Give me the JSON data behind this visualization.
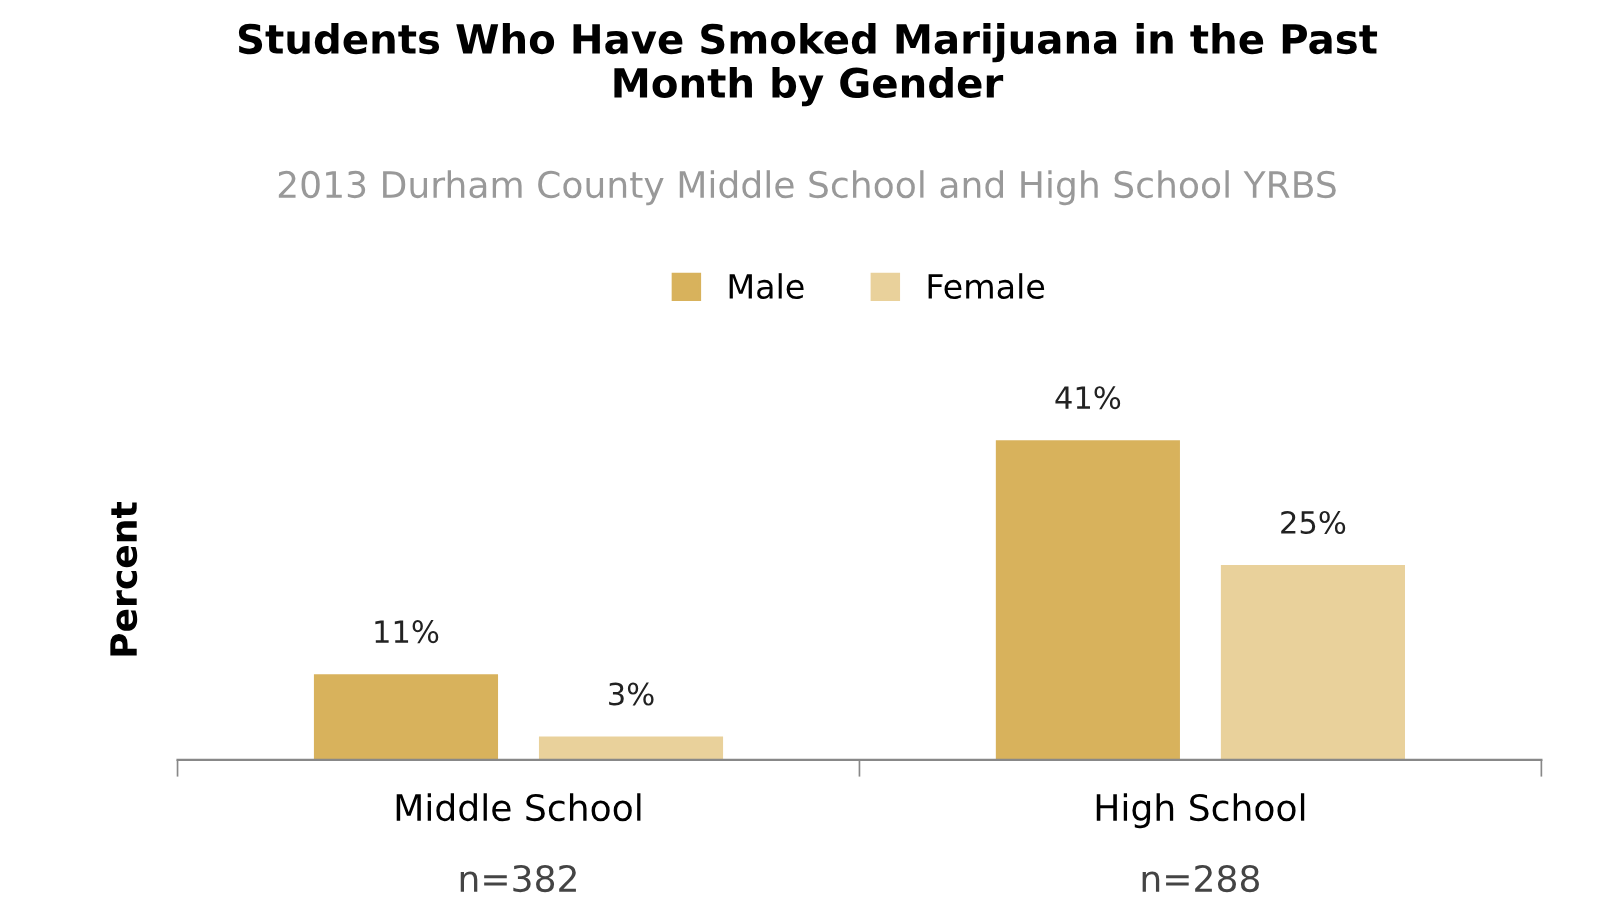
{
  "chart_data": {
    "type": "bar",
    "title": "Students Who Have Smoked Marijuana in the Past\nMonth by Gender",
    "subtitle": "2013 Durham County Middle School and High School YRBS",
    "ylabel": "Percent",
    "categories": [
      "Middle School",
      "High School"
    ],
    "series": [
      {
        "name": "Male",
        "color": "#d8b25c",
        "values": [
          11,
          41
        ],
        "value_labels": [
          "11%",
          "41%"
        ]
      },
      {
        "name": "Female",
        "color": "#e9d19b",
        "values": [
          3,
          25
        ],
        "value_labels": [
          "3%",
          "25%"
        ]
      }
    ],
    "annotations": [
      "n=382",
      "n=288"
    ],
    "legend": "top",
    "grid": false,
    "tick_labels": "x"
  }
}
